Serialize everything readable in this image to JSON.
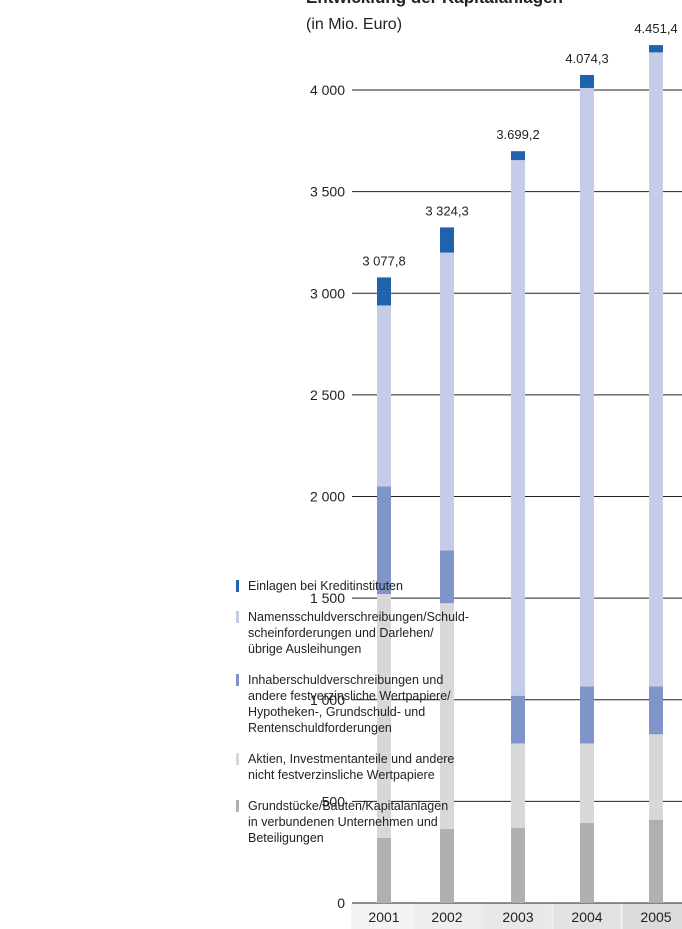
{
  "chart_data": {
    "type": "bar",
    "stacked": true,
    "title": "Entwicklung der Kapitalanlagen",
    "subtitle": "(in Mio. Euro)",
    "categories": [
      "2001",
      "2002",
      "2003",
      "2004",
      "2005"
    ],
    "totals_labels": [
      "3 077,8",
      "3 324,3",
      "3.699,2",
      "4.074,3",
      "4.451,4"
    ],
    "ylim": [
      0,
      4450
    ],
    "yticks": [
      0,
      500,
      1000,
      1500,
      2000,
      2500,
      3000,
      3500,
      4000
    ],
    "ytick_labels": [
      "0",
      "500",
      "1 000",
      "1 500",
      "2 000",
      "2 500",
      "3 000",
      "3 500",
      "4 000"
    ],
    "grid": true,
    "series": [
      {
        "name": "Grundstücke/Bauten/Kapitalanlagen in verbundenen Unternehmen und Beteiligungen",
        "color": "#b0b0b0",
        "values": [
          320,
          365,
          370,
          395,
          410
        ]
      },
      {
        "name": "Aktien, Investmentanteile und andere nicht festverzinsliche Wertpapiere",
        "color": "#d8d8d8",
        "values": [
          1200,
          1110,
          415,
          390,
          420
        ]
      },
      {
        "name": "Inhaberschuldverschreibungen und andere festverzinsliche Wertpapiere/ Hypotheken-, Grundschuld- und Rentenschuldforderungen",
        "color": "#7f94c9",
        "values": [
          530,
          260,
          235,
          280,
          235
        ]
      },
      {
        "name": "Namensschuldverschreibungen/Schuldscheinforderungen und Darlehen/ übrige Ausleihungen",
        "color": "#c5cce8",
        "values": [
          890,
          1465,
          2635,
          2945,
          3120
        ]
      },
      {
        "name": "Einlagen bei Kreditinstituten",
        "color": "#1f63ad",
        "values": [
          138,
          124,
          44,
          64,
          36
        ]
      }
    ]
  },
  "legend": {
    "items": [
      {
        "text": "Einlagen bei Kreditinstituten",
        "color": "#1f63ad"
      },
      {
        "text": "Namensschuldverschreibungen/Schuld-\nscheinforderungen und Darlehen/\nübrige Ausleihungen",
        "color": "#c5cce8"
      },
      {
        "text": "Inhaberschuldverschreibungen und\nandere festverzinsliche Wertpapiere/\nHypotheken-, Grundschuld- und\nRentenschuldforderungen",
        "color": "#7f94c9"
      },
      {
        "text": "Aktien, Investmentanteile und andere\nnicht festverzinsliche Wertpapiere",
        "color": "#d8d8d8"
      },
      {
        "text": "Grundstücke/Bauten/Kapitalanlagen\nin verbundenen Unternehmen und\nBeteiligungen",
        "color": "#b0b0b0"
      }
    ]
  }
}
